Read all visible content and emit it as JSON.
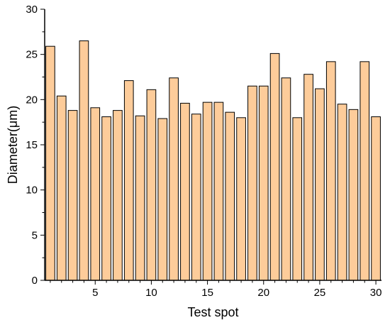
{
  "chart_data": {
    "type": "bar",
    "xlabel": "Test spot",
    "ylabel": "Diameter(μm)",
    "categories": [
      1,
      2,
      3,
      4,
      5,
      6,
      7,
      8,
      9,
      10,
      11,
      12,
      13,
      14,
      15,
      16,
      17,
      18,
      19,
      20,
      21,
      22,
      23,
      24,
      25,
      26,
      27,
      28,
      29,
      30
    ],
    "values": [
      25.9,
      20.4,
      18.8,
      26.5,
      19.1,
      18.1,
      18.8,
      22.1,
      18.2,
      21.1,
      17.9,
      22.4,
      19.6,
      18.4,
      19.7,
      19.7,
      18.6,
      18.0,
      21.5,
      21.5,
      25.1,
      22.4,
      18.0,
      22.8,
      21.2,
      24.2,
      19.5,
      18.9,
      24.2,
      18.1
    ],
    "xlim": [
      0.5,
      30.5
    ],
    "ylim": [
      0,
      30
    ],
    "x_ticks": [
      5,
      10,
      15,
      20,
      25,
      30
    ],
    "y_ticks": [
      0,
      5,
      10,
      15,
      20,
      25,
      30
    ],
    "grid": false,
    "colors": {
      "bar_fill": "#FDCC9A",
      "bar_stroke": "#000000",
      "axis": "#000000"
    }
  }
}
